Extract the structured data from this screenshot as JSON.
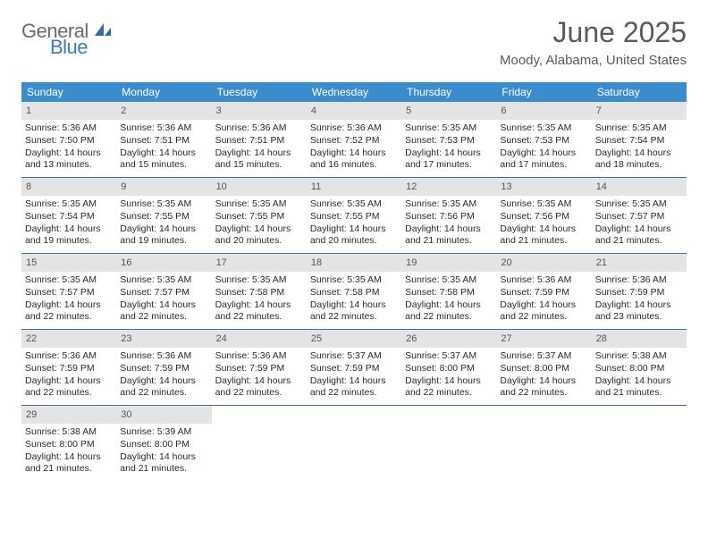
{
  "logo": {
    "word1": "General",
    "word2": "Blue"
  },
  "title": "June 2025",
  "location": "Moody, Alabama, United States",
  "colors": {
    "header_bg": "#3b8ccc",
    "header_text": "#ffffff",
    "daynum_bg": "#e4e4e4",
    "week_divider": "#3b6fa3",
    "title_color": "#5a5a5a",
    "logo_gray": "#6b6b6b",
    "logo_blue": "#3a7cbf"
  },
  "dow": [
    "Sunday",
    "Monday",
    "Tuesday",
    "Wednesday",
    "Thursday",
    "Friday",
    "Saturday"
  ],
  "weeks": [
    [
      {
        "n": "1",
        "sr": "Sunrise: 5:36 AM",
        "ss": "Sunset: 7:50 PM",
        "dl": "Daylight: 14 hours and 13 minutes."
      },
      {
        "n": "2",
        "sr": "Sunrise: 5:36 AM",
        "ss": "Sunset: 7:51 PM",
        "dl": "Daylight: 14 hours and 15 minutes."
      },
      {
        "n": "3",
        "sr": "Sunrise: 5:36 AM",
        "ss": "Sunset: 7:51 PM",
        "dl": "Daylight: 14 hours and 15 minutes."
      },
      {
        "n": "4",
        "sr": "Sunrise: 5:36 AM",
        "ss": "Sunset: 7:52 PM",
        "dl": "Daylight: 14 hours and 16 minutes."
      },
      {
        "n": "5",
        "sr": "Sunrise: 5:35 AM",
        "ss": "Sunset: 7:53 PM",
        "dl": "Daylight: 14 hours and 17 minutes."
      },
      {
        "n": "6",
        "sr": "Sunrise: 5:35 AM",
        "ss": "Sunset: 7:53 PM",
        "dl": "Daylight: 14 hours and 17 minutes."
      },
      {
        "n": "7",
        "sr": "Sunrise: 5:35 AM",
        "ss": "Sunset: 7:54 PM",
        "dl": "Daylight: 14 hours and 18 minutes."
      }
    ],
    [
      {
        "n": "8",
        "sr": "Sunrise: 5:35 AM",
        "ss": "Sunset: 7:54 PM",
        "dl": "Daylight: 14 hours and 19 minutes."
      },
      {
        "n": "9",
        "sr": "Sunrise: 5:35 AM",
        "ss": "Sunset: 7:55 PM",
        "dl": "Daylight: 14 hours and 19 minutes."
      },
      {
        "n": "10",
        "sr": "Sunrise: 5:35 AM",
        "ss": "Sunset: 7:55 PM",
        "dl": "Daylight: 14 hours and 20 minutes."
      },
      {
        "n": "11",
        "sr": "Sunrise: 5:35 AM",
        "ss": "Sunset: 7:55 PM",
        "dl": "Daylight: 14 hours and 20 minutes."
      },
      {
        "n": "12",
        "sr": "Sunrise: 5:35 AM",
        "ss": "Sunset: 7:56 PM",
        "dl": "Daylight: 14 hours and 21 minutes."
      },
      {
        "n": "13",
        "sr": "Sunrise: 5:35 AM",
        "ss": "Sunset: 7:56 PM",
        "dl": "Daylight: 14 hours and 21 minutes."
      },
      {
        "n": "14",
        "sr": "Sunrise: 5:35 AM",
        "ss": "Sunset: 7:57 PM",
        "dl": "Daylight: 14 hours and 21 minutes."
      }
    ],
    [
      {
        "n": "15",
        "sr": "Sunrise: 5:35 AM",
        "ss": "Sunset: 7:57 PM",
        "dl": "Daylight: 14 hours and 22 minutes."
      },
      {
        "n": "16",
        "sr": "Sunrise: 5:35 AM",
        "ss": "Sunset: 7:57 PM",
        "dl": "Daylight: 14 hours and 22 minutes."
      },
      {
        "n": "17",
        "sr": "Sunrise: 5:35 AM",
        "ss": "Sunset: 7:58 PM",
        "dl": "Daylight: 14 hours and 22 minutes."
      },
      {
        "n": "18",
        "sr": "Sunrise: 5:35 AM",
        "ss": "Sunset: 7:58 PM",
        "dl": "Daylight: 14 hours and 22 minutes."
      },
      {
        "n": "19",
        "sr": "Sunrise: 5:35 AM",
        "ss": "Sunset: 7:58 PM",
        "dl": "Daylight: 14 hours and 22 minutes."
      },
      {
        "n": "20",
        "sr": "Sunrise: 5:36 AM",
        "ss": "Sunset: 7:59 PM",
        "dl": "Daylight: 14 hours and 22 minutes."
      },
      {
        "n": "21",
        "sr": "Sunrise: 5:36 AM",
        "ss": "Sunset: 7:59 PM",
        "dl": "Daylight: 14 hours and 23 minutes."
      }
    ],
    [
      {
        "n": "22",
        "sr": "Sunrise: 5:36 AM",
        "ss": "Sunset: 7:59 PM",
        "dl": "Daylight: 14 hours and 22 minutes."
      },
      {
        "n": "23",
        "sr": "Sunrise: 5:36 AM",
        "ss": "Sunset: 7:59 PM",
        "dl": "Daylight: 14 hours and 22 minutes."
      },
      {
        "n": "24",
        "sr": "Sunrise: 5:36 AM",
        "ss": "Sunset: 7:59 PM",
        "dl": "Daylight: 14 hours and 22 minutes."
      },
      {
        "n": "25",
        "sr": "Sunrise: 5:37 AM",
        "ss": "Sunset: 7:59 PM",
        "dl": "Daylight: 14 hours and 22 minutes."
      },
      {
        "n": "26",
        "sr": "Sunrise: 5:37 AM",
        "ss": "Sunset: 8:00 PM",
        "dl": "Daylight: 14 hours and 22 minutes."
      },
      {
        "n": "27",
        "sr": "Sunrise: 5:37 AM",
        "ss": "Sunset: 8:00 PM",
        "dl": "Daylight: 14 hours and 22 minutes."
      },
      {
        "n": "28",
        "sr": "Sunrise: 5:38 AM",
        "ss": "Sunset: 8:00 PM",
        "dl": "Daylight: 14 hours and 21 minutes."
      }
    ],
    [
      {
        "n": "29",
        "sr": "Sunrise: 5:38 AM",
        "ss": "Sunset: 8:00 PM",
        "dl": "Daylight: 14 hours and 21 minutes."
      },
      {
        "n": "30",
        "sr": "Sunrise: 5:39 AM",
        "ss": "Sunset: 8:00 PM",
        "dl": "Daylight: 14 hours and 21 minutes."
      },
      {
        "empty": true
      },
      {
        "empty": true
      },
      {
        "empty": true
      },
      {
        "empty": true
      },
      {
        "empty": true
      }
    ]
  ]
}
